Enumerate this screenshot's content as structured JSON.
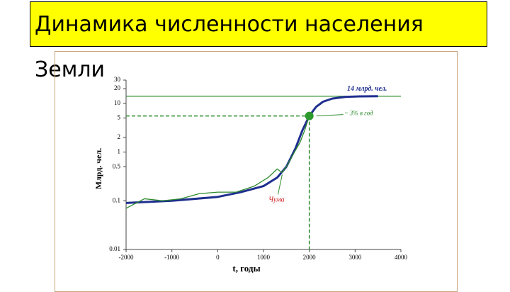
{
  "header": {
    "title": "Динамика численности населения Земли"
  },
  "chart_data": {
    "type": "line",
    "xlabel": "t, годы",
    "ylabel": "Млрд. чел.",
    "xlim": [
      -2000,
      4000
    ],
    "xticks": [
      -2000,
      -1000,
      0,
      1000,
      2000,
      3000,
      4000
    ],
    "ylim": [
      0.01,
      30
    ],
    "yticks": [
      0.01,
      0.1,
      0.5,
      1,
      2,
      5,
      10,
      20,
      30
    ],
    "log_y": true,
    "series": [
      {
        "color": "#1f2f8f",
        "x": [
          -2000,
          -1000,
          0,
          500,
          1000,
          1300,
          1500,
          1700,
          1850,
          2000,
          2150,
          2300,
          2500,
          2800,
          3100,
          3500
        ],
        "values": [
          0.09,
          0.1,
          0.12,
          0.15,
          0.2,
          0.3,
          0.5,
          1.2,
          2.8,
          5.5,
          8.5,
          10.8,
          12.5,
          13.6,
          13.9,
          14
        ]
      },
      {
        "color": "#2e8b2e",
        "x": [
          -2000,
          -1600,
          -1200,
          -800,
          -400,
          0,
          400,
          800,
          1100,
          1300,
          1400,
          1500,
          1650,
          1800,
          1900,
          2000
        ],
        "values": [
          0.07,
          0.11,
          0.1,
          0.11,
          0.14,
          0.15,
          0.15,
          0.2,
          0.3,
          0.45,
          0.38,
          0.5,
          0.9,
          1.6,
          2.8,
          5.5
        ]
      }
    ],
    "hline": {
      "y": 14,
      "label": "14 млрд. чел."
    },
    "point": {
      "x": 2000,
      "y": 5.5,
      "label": "~ 3% в год"
    },
    "annotation": {
      "x": 1300,
      "y": 0.45,
      "text": "Чума"
    }
  }
}
